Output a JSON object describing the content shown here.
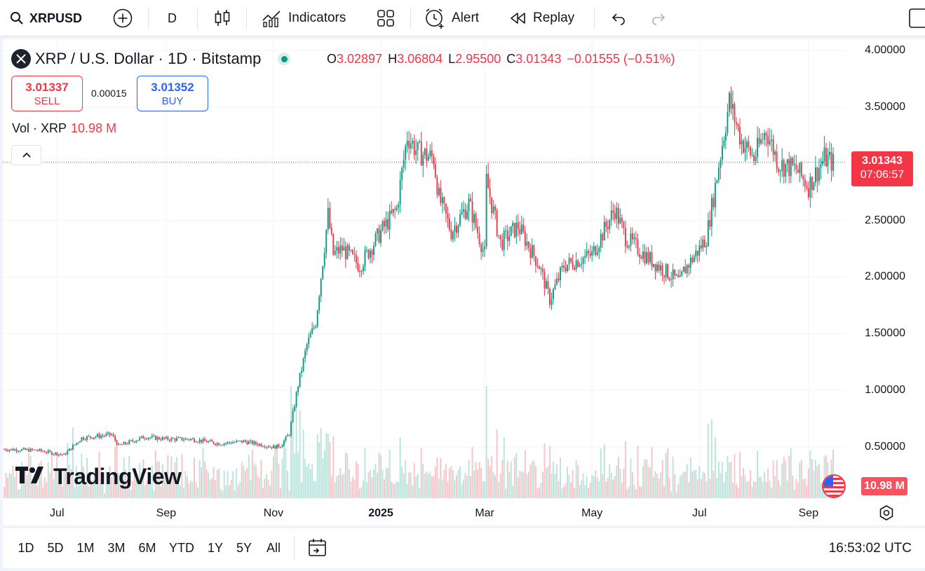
{
  "toolbar": {
    "symbol": "XRPUSD",
    "interval": "D",
    "indicators_label": "Indicators",
    "alert_label": "Alert",
    "replay_label": "Replay"
  },
  "legend": {
    "title": "XRP / U.S. Dollar · 1D · Bitstamp",
    "open_key": "O",
    "open": "3.02897",
    "high_key": "H",
    "high": "3.06804",
    "low_key": "L",
    "low": "2.95500",
    "close_key": "C",
    "close": "3.01343",
    "change": "−0.01555 (−0.51%)"
  },
  "trade": {
    "sell_price": "3.01337",
    "sell_label": "SELL",
    "spread": "0.00015",
    "buy_price": "3.01352",
    "buy_label": "BUY"
  },
  "volume_legend": {
    "label": "Vol · XRP",
    "value": "10.98 M"
  },
  "last_price": {
    "price": "3.01343",
    "countdown": "07:06:57"
  },
  "volume_tag": "10.98 M",
  "watermark": "TradingView",
  "bottom_bar": {
    "ranges": [
      "1D",
      "5D",
      "1M",
      "3M",
      "6M",
      "YTD",
      "1Y",
      "5Y",
      "All"
    ],
    "clock": "16:53:02 UTC"
  },
  "colors": {
    "up": "#089981",
    "down": "#f23645",
    "accent": "#2962ff"
  },
  "chart_data": {
    "type": "candlestick",
    "instrument": "XRP / U.S. Dollar",
    "interval": "1D",
    "exchange": "Bitstamp",
    "y_tick_labels": [
      "4.00000",
      "3.50000",
      "3.00000",
      "2.50000",
      "2.00000",
      "1.50000",
      "1.00000",
      "0.50000"
    ],
    "y_ticks": [
      4.0,
      3.5,
      3.0,
      2.5,
      2.0,
      1.5,
      1.0,
      0.5
    ],
    "x_tick_labels": [
      "Jul",
      "Sep",
      "Nov",
      "2025",
      "Mar",
      "May",
      "Jul",
      "Sep"
    ],
    "ylim": [
      0.07,
      4.1
    ],
    "grid": true,
    "date_range": [
      "2024-06-01",
      "2025-09-15"
    ],
    "close_series": {
      "dates": [
        "2024-06-01",
        "2024-06-20",
        "2024-07-05",
        "2024-07-15",
        "2024-08-01",
        "2024-08-05",
        "2024-08-20",
        "2024-09-01",
        "2024-09-15",
        "2024-10-01",
        "2024-10-15",
        "2024-11-01",
        "2024-11-05",
        "2024-11-10",
        "2024-11-15",
        "2024-11-20",
        "2024-11-25",
        "2024-12-02",
        "2024-12-05",
        "2024-12-10",
        "2024-12-20",
        "2025-01-01",
        "2025-01-10",
        "2025-01-16",
        "2025-01-22",
        "2025-01-31",
        "2025-02-03",
        "2025-02-10",
        "2025-02-20",
        "2025-03-01",
        "2025-03-02",
        "2025-03-10",
        "2025-03-20",
        "2025-04-01",
        "2025-04-07",
        "2025-04-15",
        "2025-05-01",
        "2025-05-14",
        "2025-05-20",
        "2025-06-01",
        "2025-06-20",
        "2025-06-22",
        "2025-07-01",
        "2025-07-05",
        "2025-07-10",
        "2025-07-18",
        "2025-07-25",
        "2025-08-01",
        "2025-08-08",
        "2025-08-15",
        "2025-08-25",
        "2025-09-01",
        "2025-09-10",
        "2025-09-15"
      ],
      "values": [
        0.48,
        0.47,
        0.43,
        0.58,
        0.61,
        0.51,
        0.59,
        0.57,
        0.57,
        0.53,
        0.55,
        0.5,
        0.51,
        0.62,
        1.05,
        1.4,
        1.6,
        2.55,
        2.2,
        2.25,
        2.1,
        2.4,
        2.6,
        3.25,
        3.1,
        3.05,
        2.7,
        2.4,
        2.65,
        2.2,
        2.85,
        2.3,
        2.45,
        2.1,
        1.8,
        2.1,
        2.2,
        2.6,
        2.35,
        2.18,
        1.95,
        2.05,
        2.25,
        2.35,
        2.8,
        3.55,
        3.2,
        3.05,
        3.3,
        3.0,
        2.95,
        2.8,
        3.05,
        3.01
      ]
    },
    "volume": {
      "unit": "XRP",
      "last": 10980000
    }
  }
}
